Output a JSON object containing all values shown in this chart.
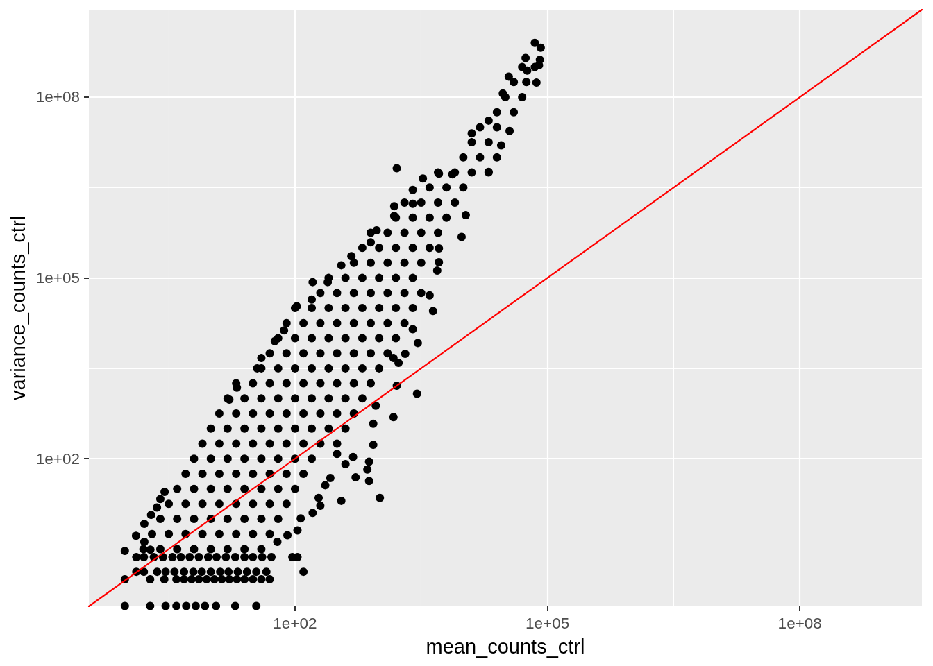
{
  "chart_data": {
    "type": "scatter",
    "xlabel": "mean_counts_ctrl",
    "ylabel": "variance_counts_ctrl",
    "log": "xy",
    "grid": true,
    "marker": "circle",
    "xlim": [
      0.355,
      2820000000.0
    ],
    "ylim": [
      0.355,
      2820000000.0
    ],
    "xticks": [
      {
        "value": 3.16,
        "label": null
      },
      {
        "value": 100,
        "label": "1e+02"
      },
      {
        "value": 3160,
        "label": null
      },
      {
        "value": 100000,
        "label": "1e+05"
      },
      {
        "value": 3160000,
        "label": null
      },
      {
        "value": 100000000,
        "label": "1e+08"
      }
    ],
    "yticks": [
      {
        "value": 3.16,
        "label": null
      },
      {
        "value": 100,
        "label": "1e+02"
      },
      {
        "value": 3160,
        "label": null
      },
      {
        "value": 100000,
        "label": "1e+05"
      },
      {
        "value": 3160000,
        "label": null
      },
      {
        "value": 100000000,
        "label": "1e+08"
      }
    ],
    "series": [
      {
        "color": "#000000",
        "x": [
          0.95,
          1.9,
          2.9,
          3.9,
          5.1,
          6.6,
          8.5,
          11.5,
          19.5,
          34.7,
          0.95,
          1.9,
          2.8,
          3.9,
          4.8,
          5.9,
          7.2,
          8.9,
          11,
          13.5,
          16.6,
          20.4,
          25.1,
          31.6,
          39.8,
          50,
          1.3,
          1.6,
          2.3,
          2.9,
          3.7,
          4.8,
          6.2,
          7.8,
          10,
          12.9,
          16.2,
          20.9,
          26.9,
          34.7,
          45.7,
          126,
          1.3,
          1.6,
          2.1,
          2.7,
          3.5,
          4.4,
          5.6,
          7.2,
          9.3,
          11.7,
          15.1,
          19.5,
          25.1,
          31.6,
          40.7,
          52.5,
          93,
          107,
          0.95,
          1.29,
          1.62,
          1.62,
          1.95,
          2.29,
          2.51,
          2.82,
          1.91,
          1.58,
          2.51,
          3.98,
          6.31,
          10,
          15.8,
          25.1,
          39.8,
          2,
          3.16,
          5.01,
          7.94,
          12.6,
          20,
          31.6,
          50.1,
          2.51,
          3.98,
          6.31,
          10,
          15.8,
          25.1,
          39.8,
          63.1,
          3.16,
          5.01,
          7.94,
          12.6,
          20,
          31.6,
          50.1,
          79.4,
          3.98,
          6.31,
          10,
          15.8,
          25.1,
          39.8,
          63.1,
          100,
          5.01,
          7.94,
          12.6,
          20,
          31.6,
          50.1,
          79.4,
          126,
          6.31,
          10,
          15.8,
          25.1,
          39.8,
          63.1,
          100,
          158,
          7.94,
          12.6,
          20,
          31.6,
          50.1,
          79.4,
          126,
          200,
          316,
          10,
          15.8,
          25.1,
          39.8,
          63.1,
          100,
          158,
          251,
          398,
          12.6,
          20,
          31.6,
          50.1,
          79.4,
          126,
          200,
          316,
          501,
          15.8,
          25.1,
          39.8,
          63.1,
          100,
          158,
          251,
          398,
          631,
          20,
          31.6,
          50.1,
          79.4,
          126,
          200,
          316,
          501,
          794,
          39.8,
          63.1,
          100,
          158,
          251,
          398,
          631,
          1000,
          50.1,
          79.4,
          126,
          200,
          316,
          501,
          794,
          1260,
          63.1,
          100,
          158,
          251,
          398,
          631,
          1000,
          1580,
          79.4,
          126,
          200,
          316,
          501,
          794,
          1260,
          2000,
          100,
          158,
          251,
          398,
          631,
          1000,
          1580,
          2510,
          200,
          316,
          501,
          794,
          1260,
          2000,
          3160,
          251,
          398,
          631,
          1000,
          1580,
          2510,
          501,
          794,
          1260,
          2000,
          3160,
          631,
          1000,
          1580,
          2510,
          3980,
          794,
          1260,
          2000,
          3160,
          5010,
          1580,
          2510,
          3980,
          6310,
          2000,
          3160,
          5010,
          7940,
          3980,
          6310,
          10000,
          5010,
          7940,
          12600,
          20000,
          10000,
          15800,
          25100,
          12600,
          20000,
          15800,
          25100,
          25100,
          39800,
          31600,
          50100,
          39800,
          56200,
          50100,
          70800,
          16.6,
          20.4,
          35.5,
          39.8,
          57.5,
          74.1,
          105,
          158,
          162,
          245,
          355,
          468,
          794,
          933,
          1510,
          1510,
          2510,
          2510,
          3310,
          5130,
          7410,
          1620,
          12600,
          20000,
          29500,
          34700,
          55000,
          70800,
          83200,
          81300,
          79400,
          57500,
          74100,
          35500,
          28200,
          20000,
          10700,
          9550,
          5130,
          5130,
          4900,
          3980,
          4370,
          2880,
          2510,
          2040,
          1700,
          1480,
          2820,
          1620,
          1480,
          912,
          851,
          851,
          759,
          724,
          759,
          1020,
          355,
          525,
          398,
          490,
          316,
          263,
          229,
          191,
          200,
          162,
          117,
          107,
          81.3,
          61.7
        ],
        "values": [
          0.36,
          0.36,
          0.36,
          0.36,
          0.36,
          0.36,
          0.36,
          0.36,
          0.36,
          0.36,
          1,
          1,
          1,
          1,
          1,
          1,
          1,
          1,
          1,
          1,
          1,
          1,
          1,
          1,
          1,
          1,
          1.33,
          1.33,
          1.33,
          1.33,
          1.33,
          1.33,
          1.33,
          1.33,
          1.33,
          1.33,
          1.33,
          1.33,
          1.33,
          1.33,
          1.33,
          1.33,
          2.33,
          2.33,
          2.33,
          2.33,
          2.33,
          2.33,
          2.33,
          2.33,
          2.33,
          2.33,
          2.33,
          2.33,
          2.33,
          2.33,
          2.33,
          2.33,
          2.33,
          2.33,
          2.95,
          5.25,
          8.3,
          4.17,
          11.7,
          15.5,
          21.4,
          28.2,
          3.09,
          3.16,
          3.16,
          3.16,
          3.16,
          3.16,
          3.16,
          3.16,
          3.16,
          5.62,
          5.62,
          5.62,
          5.62,
          5.62,
          5.62,
          5.62,
          5.62,
          10,
          10,
          10,
          10,
          10,
          10,
          10,
          10,
          17.8,
          17.8,
          17.8,
          17.8,
          17.8,
          17.8,
          17.8,
          17.8,
          31.6,
          31.6,
          31.6,
          31.6,
          31.6,
          31.6,
          31.6,
          31.6,
          56.2,
          56.2,
          56.2,
          56.2,
          56.2,
          56.2,
          56.2,
          56.2,
          100,
          100,
          100,
          100,
          100,
          100,
          100,
          100,
          178,
          178,
          178,
          178,
          178,
          178,
          178,
          178,
          178,
          316,
          316,
          316,
          316,
          316,
          316,
          316,
          316,
          316,
          562,
          562,
          562,
          562,
          562,
          562,
          562,
          562,
          562,
          1000,
          1000,
          1000,
          1000,
          1000,
          1000,
          1000,
          1000,
          1000,
          1780,
          1780,
          1780,
          1780,
          1780,
          1780,
          1780,
          1780,
          1780,
          3160,
          3160,
          3160,
          3160,
          3160,
          3160,
          3160,
          3160,
          5620,
          5620,
          5620,
          5620,
          5620,
          5620,
          5620,
          5620,
          10000,
          10000,
          10000,
          10000,
          10000,
          10000,
          10000,
          10000,
          17800,
          17800,
          17800,
          17800,
          17800,
          17800,
          17800,
          17800,
          31600,
          31600,
          31600,
          31600,
          31600,
          31600,
          31600,
          31600,
          56200,
          56200,
          56200,
          56200,
          56200,
          56200,
          56200,
          100000.0,
          100000.0,
          100000.0,
          100000.0,
          100000.0,
          100000.0,
          178000.0,
          178000.0,
          178000.0,
          178000.0,
          178000.0,
          316000.0,
          316000.0,
          316000.0,
          316000.0,
          316000.0,
          562000.0,
          562000.0,
          562000.0,
          562000.0,
          562000.0,
          1000000.0,
          1000000.0,
          1000000.0,
          1000000.0,
          1780000.0,
          1780000.0,
          1780000.0,
          1780000.0,
          3160000.0,
          3160000.0,
          3160000.0,
          5620000.0,
          5620000.0,
          5620000.0,
          5620000.0,
          10000000.0,
          10000000.0,
          10000000.0,
          17800000.0,
          17800000.0,
          31600000.0,
          31600000.0,
          56200000.0,
          56200000.0,
          100000000.0,
          100000000.0,
          178000000.0,
          178000000.0,
          316000000.0,
          316000000.0,
          955,
          1510,
          3160,
          4680,
          8910,
          13500,
          33900,
          43700,
          85100,
          85100,
          162000.0,
          229000.0,
          389000.0,
          617000.0,
          1070000.0,
          1550000.0,
          1700000.0,
          2880000.0,
          4470000.0,
          5370000.0,
          5250000.0,
          6610000.0,
          25100000.0,
          40700000.0,
          115000000.0,
          219000000.0,
          447000000.0,
          794000000.0,
          661000000.0,
          417000000.0,
          339000000.0,
          275000000.0,
          174000000.0,
          27500000.0,
          15800000.0,
          5750000.0,
          1100000.0,
          479000.0,
          309000.0,
          182000.0,
          132000.0,
          51300,
          28200,
          8320,
          14100,
          5500,
          3890,
          4680,
          1200,
          1620,
          490,
          759,
          380,
          170,
          89.1,
          66.1,
          42.7,
          22.4,
          20,
          49,
          81.3,
          107,
          120,
          47.9,
          36.3,
          22.4,
          16.6,
          12.6,
          10.2,
          6.46,
          5.37,
          4.17
        ]
      },
      {
        "type": "line",
        "color": "#ff0000",
        "marker": "none",
        "line_style": "solid",
        "x": [
          0.355,
          2820000000.0
        ],
        "values": [
          0.355,
          2820000000.0
        ]
      }
    ]
  }
}
